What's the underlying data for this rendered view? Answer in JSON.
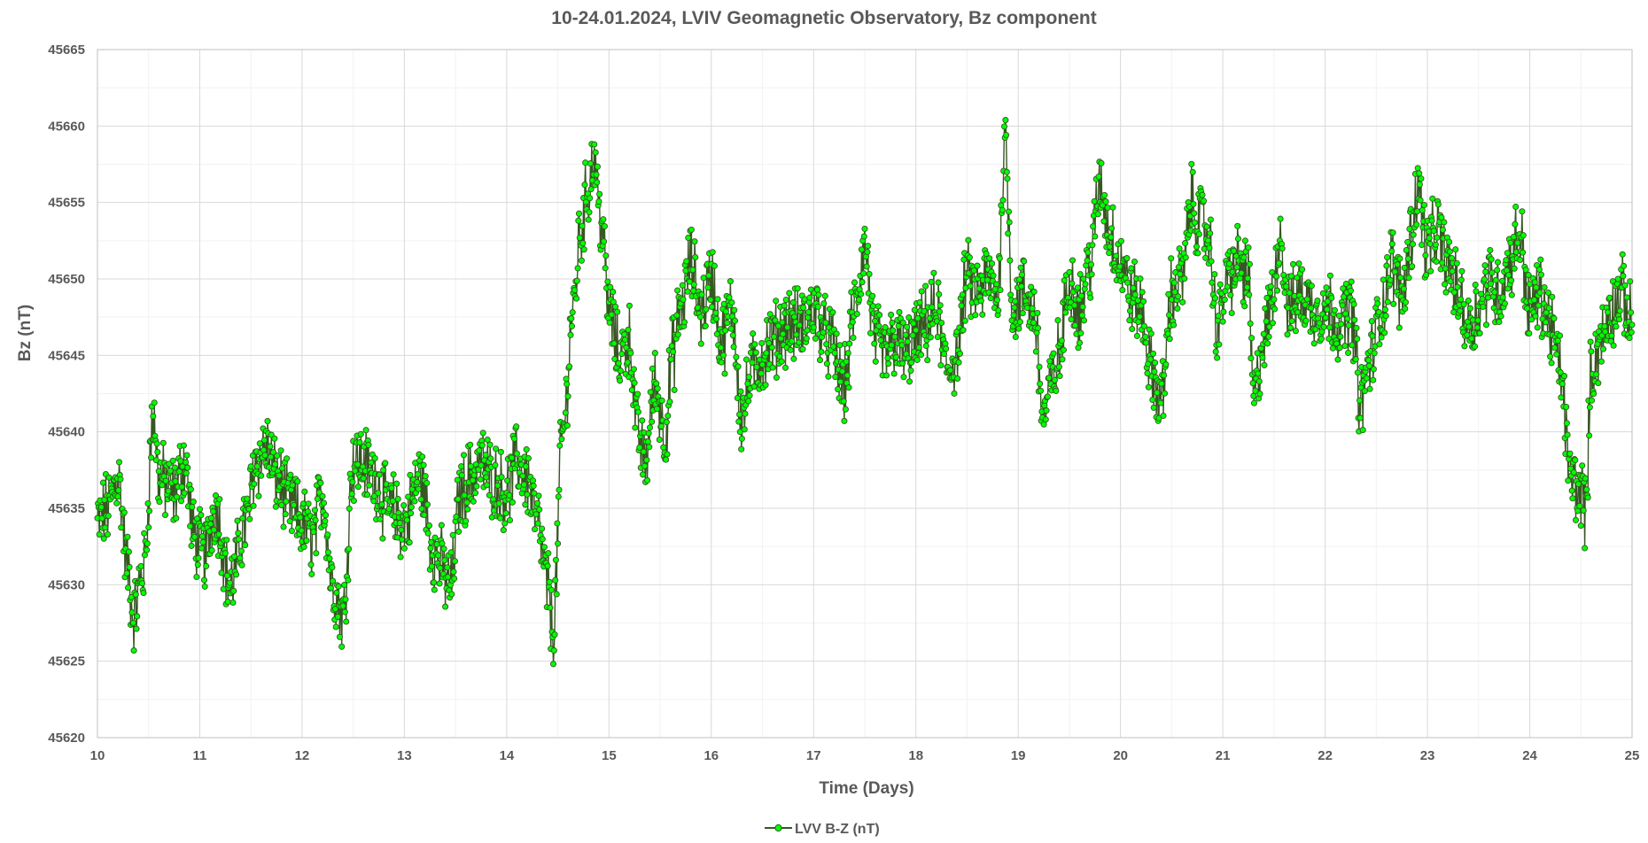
{
  "chart_data": {
    "type": "line",
    "title": "10-24.01.2024, LVIV Geomagnetic Observatory,  Bz component",
    "xlabel": "Time (Days)",
    "ylabel": "Bz (nT)",
    "xlim": [
      10,
      25
    ],
    "ylim": [
      45620,
      45665
    ],
    "xticks": [
      10,
      11,
      12,
      13,
      14,
      15,
      16,
      17,
      18,
      19,
      20,
      21,
      22,
      23,
      24,
      25
    ],
    "yticks": [
      45620,
      45625,
      45630,
      45635,
      45640,
      45645,
      45650,
      45655,
      45660,
      45665
    ],
    "grid": true,
    "legend_position": "bottom-center",
    "colors": {
      "line": "#375623",
      "marker_fill": "#00ff00",
      "marker_edge": "#375623",
      "grid_major": "#d9d9d9",
      "grid_minor": "#f2f2f2",
      "axis": "#bfbfbf",
      "text": "#595959"
    },
    "series": [
      {
        "name": "LVV B-Z (nT)",
        "x": [
          10.0,
          10.1,
          10.2,
          10.3,
          10.35,
          10.45,
          10.55,
          10.6,
          10.75,
          10.85,
          10.95,
          11.05,
          11.15,
          11.3,
          11.45,
          11.55,
          11.65,
          11.75,
          11.9,
          12.0,
          12.1,
          12.2,
          12.3,
          12.4,
          12.5,
          12.6,
          12.7,
          12.85,
          13.0,
          13.15,
          13.3,
          13.45,
          13.55,
          13.65,
          13.75,
          13.85,
          14.0,
          14.1,
          14.2,
          14.3,
          14.4,
          14.45,
          14.55,
          14.65,
          14.72,
          14.8,
          14.85,
          14.92,
          15.0,
          15.1,
          15.2,
          15.28,
          15.35,
          15.45,
          15.55,
          15.62,
          15.7,
          15.8,
          15.9,
          16.0,
          16.1,
          16.2,
          16.3,
          16.4,
          16.5,
          16.6,
          16.75,
          16.9,
          17.0,
          17.15,
          17.3,
          17.4,
          17.5,
          17.6,
          17.7,
          17.8,
          17.9,
          18.0,
          18.1,
          18.2,
          18.3,
          18.4,
          18.5,
          18.6,
          18.7,
          18.8,
          18.87,
          18.95,
          19.05,
          19.15,
          19.25,
          19.32,
          19.4,
          19.5,
          19.6,
          19.7,
          19.8,
          19.9,
          20.0,
          20.1,
          20.2,
          20.3,
          20.4,
          20.5,
          20.6,
          20.7,
          20.75,
          20.85,
          20.95,
          21.05,
          21.15,
          21.25,
          21.3,
          21.4,
          21.5,
          21.55,
          21.65,
          21.75,
          21.9,
          22.05,
          22.15,
          22.25,
          22.35,
          22.45,
          22.55,
          22.65,
          22.75,
          22.85,
          22.9,
          23.0,
          23.1,
          23.2,
          23.3,
          23.4,
          23.5,
          23.6,
          23.7,
          23.8,
          23.9,
          24.0,
          24.1,
          24.2,
          24.3,
          24.4,
          24.5,
          24.55,
          24.6,
          24.7,
          24.8,
          24.9,
          25.0
        ],
        "values": [
          45634,
          45635,
          45637,
          45631,
          45628,
          45631,
          45641,
          45637,
          45636,
          45638,
          45633,
          45632,
          45635,
          45630,
          45634,
          45638,
          45639,
          45637,
          45635,
          45634,
          45633,
          45636,
          45630,
          45628,
          45638,
          45638,
          45637,
          45635,
          45634,
          45637,
          45632,
          45630,
          45636,
          45637,
          45638,
          45637,
          45636,
          45638,
          45637,
          45634,
          45630,
          45627,
          45640,
          45648,
          45653,
          45656,
          45658,
          45654,
          45648,
          45645,
          45646,
          45640,
          45638,
          45643,
          45640,
          45645,
          45648,
          45651,
          45648,
          45650,
          45646,
          45648,
          45641,
          45644,
          45645,
          45646,
          45647,
          45647,
          45648,
          45646,
          45643,
          45648,
          45652,
          45646,
          45645,
          45646,
          45645,
          45646,
          45647,
          45648,
          45644,
          45645,
          45650,
          45649,
          45650,
          45649,
          45659,
          45648,
          45649,
          45648,
          45641,
          45643,
          45645,
          45650,
          45648,
          45651,
          45656,
          45653,
          45651,
          45649,
          45648,
          45644,
          45642,
          45649,
          45650,
          45655,
          45654,
          45653,
          45647,
          45650,
          45651,
          45650,
          45642,
          45646,
          45649,
          45653,
          45648,
          45649,
          45648,
          45648,
          45647,
          45648,
          45642,
          45645,
          45648,
          45651,
          45649,
          45653,
          45656,
          45652,
          45653,
          45651,
          45649,
          45647,
          45648,
          45650,
          45649,
          45651,
          45653,
          45648,
          45649,
          45647,
          45644,
          45637,
          45636,
          45635,
          45644,
          45646,
          45648,
          45649,
          45647
        ]
      }
    ]
  }
}
